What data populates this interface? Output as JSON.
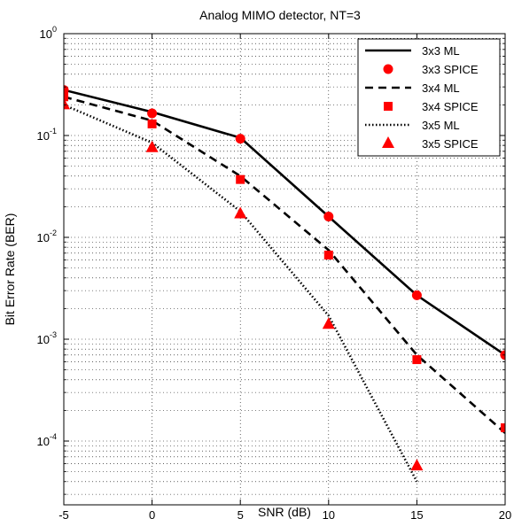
{
  "chart_data": {
    "type": "line",
    "title": "Analog MIMO detector, NT=3",
    "xlabel": "SNR (dB)",
    "ylabel": "Bit Error Rate (BER)",
    "xlim": [
      -5,
      20
    ],
    "ylim": [
      3e-05,
      1
    ],
    "yscale": "log",
    "grid": true,
    "legend_position": "top-right",
    "x_ticks": [
      -5,
      0,
      5,
      10,
      15,
      20
    ],
    "y_tick_labels": [
      {
        "base": "10",
        "exp": "0",
        "value": 1
      },
      {
        "base": "10",
        "exp": "-1",
        "value": 0.1
      },
      {
        "base": "10",
        "exp": "-2",
        "value": 0.01
      },
      {
        "base": "10",
        "exp": "-3",
        "value": 0.001
      },
      {
        "base": "10",
        "exp": "-4",
        "value": 0.0001
      }
    ],
    "x": [
      -5,
      0,
      5,
      10,
      15,
      20
    ],
    "series": [
      {
        "name": "3x3 ML",
        "kind": "line",
        "style": "solid",
        "color": "#000000",
        "values": [
          0.28,
          0.17,
          0.095,
          0.016,
          0.0027,
          0.0007
        ]
      },
      {
        "name": "3x3 SPICE",
        "kind": "marker",
        "marker": "circle",
        "color": "#ff0000",
        "values": [
          0.28,
          0.165,
          0.093,
          0.016,
          0.0027,
          0.0007
        ]
      },
      {
        "name": "3x4 ML",
        "kind": "line",
        "style": "dashed",
        "color": "#000000",
        "values": [
          0.24,
          0.14,
          0.04,
          0.0075,
          0.0007,
          0.00012
        ]
      },
      {
        "name": "3x4 SPICE",
        "kind": "marker",
        "marker": "square",
        "color": "#ff0000",
        "values": [
          0.24,
          0.13,
          0.037,
          0.0067,
          0.00063,
          0.000135
        ]
      },
      {
        "name": "3x5 ML",
        "kind": "line",
        "style": "dotted",
        "color": "#000000",
        "values": [
          0.2,
          0.085,
          0.018,
          0.0017,
          4e-05,
          null
        ]
      },
      {
        "name": "3x5 SPICE",
        "kind": "marker",
        "marker": "triangle",
        "color": "#ff0000",
        "values": [
          0.2,
          0.076,
          0.017,
          0.0014,
          5.7e-05,
          null
        ]
      }
    ]
  }
}
